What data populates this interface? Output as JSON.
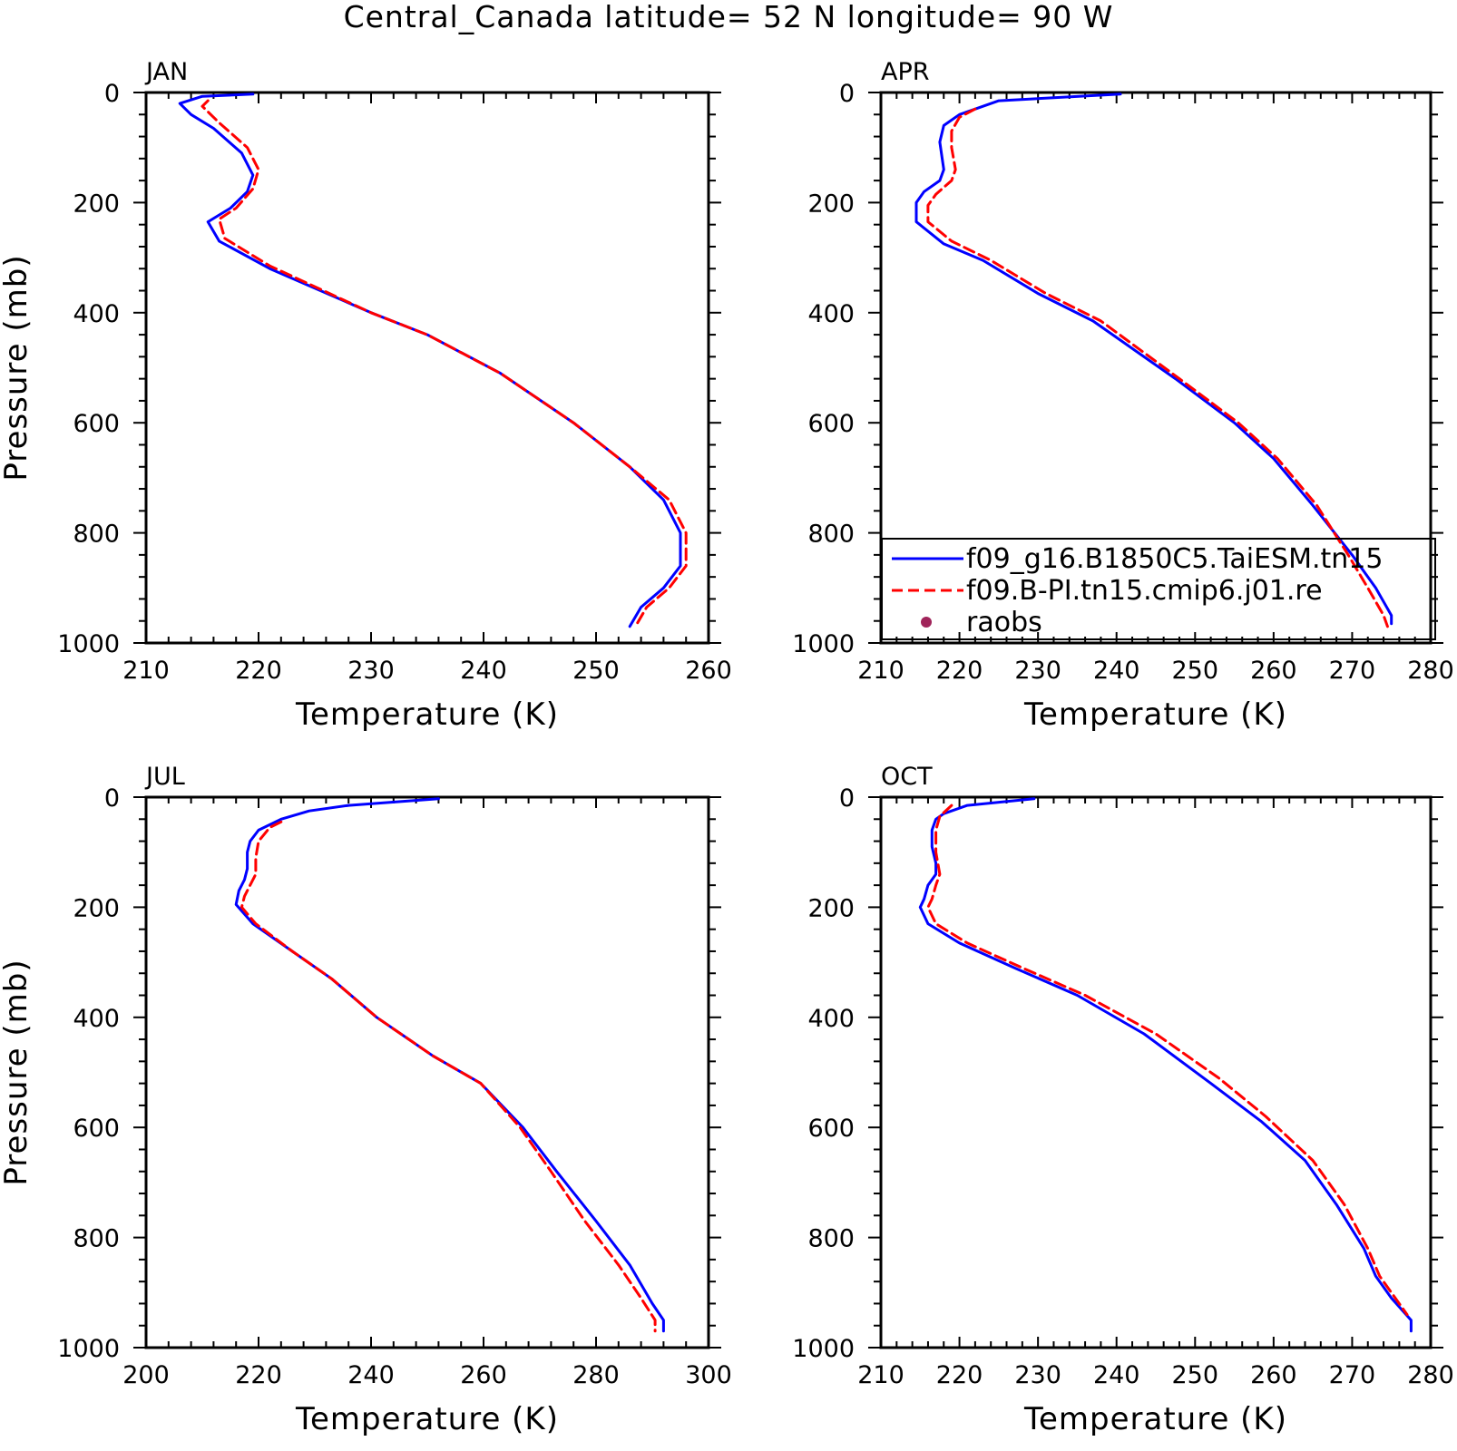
{
  "figure": {
    "title": "Central_Canada  latitude= 52 N longitude= 90 W"
  },
  "chart_data": [
    {
      "type": "line",
      "panel": "JAN",
      "xlabel": "Temperature (K)",
      "ylabel": "Pressure (mb)",
      "xlim": [
        210,
        260
      ],
      "ylim": [
        1000,
        0
      ],
      "y_inverted": true,
      "xticks": [
        210,
        220,
        230,
        240,
        250,
        260
      ],
      "yticks": [
        0,
        200,
        400,
        600,
        800,
        1000
      ],
      "series": [
        {
          "name": "f09_g16.B1850C5.TaiESM.tn15",
          "color": "#0000ff",
          "style": "solid",
          "points": [
            [
              219.5,
              3
            ],
            [
              215,
              7
            ],
            [
              213,
              20
            ],
            [
              214,
              40
            ],
            [
              216,
              65
            ],
            [
              218.5,
              110
            ],
            [
              219.5,
              150
            ],
            [
              219,
              180
            ],
            [
              217.5,
              210
            ],
            [
              215.5,
              235
            ],
            [
              216.5,
              270
            ],
            [
              221,
              320
            ],
            [
              230,
              400
            ],
            [
              235,
              440
            ],
            [
              241.5,
              510
            ],
            [
              248,
              600
            ],
            [
              253,
              680
            ],
            [
              256,
              740
            ],
            [
              257.5,
              800
            ],
            [
              257.5,
              860
            ],
            [
              256,
              900
            ],
            [
              254,
              935
            ],
            [
              253,
              970
            ]
          ]
        },
        {
          "name": "f09.B-PI.tn15.cmip6.j01.re",
          "color": "#ff0000",
          "style": "dashed",
          "points": [
            [
              215.5,
              15
            ],
            [
              215,
              25
            ],
            [
              216.5,
              55
            ],
            [
              219,
              100
            ],
            [
              220,
              140
            ],
            [
              219.5,
              175
            ],
            [
              218,
              210
            ],
            [
              216.5,
              230
            ],
            [
              217,
              265
            ],
            [
              221,
              315
            ],
            [
              230,
              400
            ],
            [
              235,
              440
            ],
            [
              241.5,
              510
            ],
            [
              248,
              600
            ],
            [
              253,
              680
            ],
            [
              256.5,
              740
            ],
            [
              258,
              800
            ],
            [
              258,
              860
            ],
            [
              256.5,
              900
            ],
            [
              254.5,
              935
            ],
            [
              253.5,
              970
            ]
          ]
        }
      ]
    },
    {
      "type": "line",
      "panel": "APR",
      "xlabel": "Temperature (K)",
      "ylabel": "",
      "xlim": [
        210,
        280
      ],
      "ylim": [
        1000,
        0
      ],
      "y_inverted": true,
      "xticks": [
        210,
        220,
        230,
        240,
        250,
        260,
        270,
        280
      ],
      "yticks": [
        0,
        200,
        400,
        600,
        800,
        1000
      ],
      "series": [
        {
          "name": "f09_g16.B1850C5.TaiESM.tn15",
          "color": "#0000ff",
          "style": "solid",
          "points": [
            [
              240.5,
              3
            ],
            [
              225,
              15
            ],
            [
              220,
              40
            ],
            [
              218,
              60
            ],
            [
              217.5,
              90
            ],
            [
              218,
              140
            ],
            [
              217.5,
              160
            ],
            [
              215.5,
              180
            ],
            [
              214.5,
              200
            ],
            [
              214.5,
              235
            ],
            [
              218,
              275
            ],
            [
              223,
              305
            ],
            [
              230,
              365
            ],
            [
              237,
              415
            ],
            [
              247.5,
              520
            ],
            [
              255,
              600
            ],
            [
              260,
              665
            ],
            [
              265,
              750
            ],
            [
              270,
              840
            ],
            [
              273,
              900
            ],
            [
              275,
              950
            ],
            [
              275,
              965
            ]
          ]
        },
        {
          "name": "f09.B-PI.tn15.cmip6.j01.re",
          "color": "#ff0000",
          "style": "dashed",
          "points": [
            [
              222,
              30
            ],
            [
              220,
              45
            ],
            [
              219,
              70
            ],
            [
              219,
              100
            ],
            [
              219.5,
              140
            ],
            [
              219,
              160
            ],
            [
              217,
              185
            ],
            [
              216,
              205
            ],
            [
              216,
              235
            ],
            [
              219,
              270
            ],
            [
              224,
              305
            ],
            [
              231,
              365
            ],
            [
              238,
              415
            ],
            [
              248,
              520
            ],
            [
              255.5,
              600
            ],
            [
              260.5,
              665
            ],
            [
              265.5,
              750
            ],
            [
              269.5,
              840
            ],
            [
              272,
              900
            ],
            [
              274,
              950
            ],
            [
              274.5,
              970
            ]
          ]
        }
      ],
      "legend": {
        "placement": "bottom-right",
        "entries": [
          {
            "label": "f09_g16.B1850C5.TaiESM.tn15",
            "marker": "line",
            "color": "#0000ff"
          },
          {
            "label": "f09.B-PI.tn15.cmip6.j01.re",
            "marker": "dashed",
            "color": "#ff0000"
          },
          {
            "label": "raobs",
            "marker": "dot",
            "color": "#a0245a"
          }
        ]
      }
    },
    {
      "type": "line",
      "panel": "JUL",
      "xlabel": "Temperature (K)",
      "ylabel": "Pressure (mb)",
      "xlim": [
        200,
        300
      ],
      "ylim": [
        1000,
        0
      ],
      "y_inverted": true,
      "xticks": [
        200,
        220,
        240,
        260,
        280,
        300
      ],
      "yticks": [
        0,
        200,
        400,
        600,
        800,
        1000
      ],
      "series": [
        {
          "name": "f09_g16.B1850C5.TaiESM.tn15",
          "color": "#0000ff",
          "style": "solid",
          "points": [
            [
              252,
              3
            ],
            [
              236,
              15
            ],
            [
              229,
              25
            ],
            [
              224,
              40
            ],
            [
              220,
              60
            ],
            [
              218.5,
              80
            ],
            [
              218,
              100
            ],
            [
              218,
              130
            ],
            [
              217.5,
              150
            ],
            [
              216.5,
              170
            ],
            [
              216,
              195
            ],
            [
              219,
              230
            ],
            [
              226,
              280
            ],
            [
              233,
              330
            ],
            [
              241,
              400
            ],
            [
              251,
              470
            ],
            [
              259.5,
              520
            ],
            [
              267,
              600
            ],
            [
              273,
              680
            ],
            [
              280,
              770
            ],
            [
              286,
              850
            ],
            [
              290,
              920
            ],
            [
              292,
              950
            ],
            [
              292,
              970
            ]
          ]
        },
        {
          "name": "f09.B-PI.tn15.cmip6.j01.re",
          "color": "#ff0000",
          "style": "dashed",
          "points": [
            [
              224,
              45
            ],
            [
              222,
              55
            ],
            [
              220,
              80
            ],
            [
              219.5,
              110
            ],
            [
              219.5,
              140
            ],
            [
              218.5,
              160
            ],
            [
              217.5,
              180
            ],
            [
              217,
              200
            ],
            [
              219.5,
              230
            ],
            [
              226,
              280
            ],
            [
              233,
              330
            ],
            [
              241,
              400
            ],
            [
              251,
              470
            ],
            [
              259.5,
              520
            ],
            [
              266.5,
              600
            ],
            [
              272,
              680
            ],
            [
              278,
              770
            ],
            [
              284,
              850
            ],
            [
              288,
              910
            ],
            [
              290.5,
              950
            ],
            [
              290.5,
              970
            ]
          ]
        }
      ]
    },
    {
      "type": "line",
      "panel": "OCT",
      "xlabel": "Temperature (K)",
      "ylabel": "",
      "xlim": [
        210,
        280
      ],
      "ylim": [
        1000,
        0
      ],
      "y_inverted": true,
      "xticks": [
        210,
        220,
        230,
        240,
        250,
        260,
        270,
        280
      ],
      "yticks": [
        0,
        200,
        400,
        600,
        800,
        1000
      ],
      "series": [
        {
          "name": "f09_g16.B1850C5.TaiESM.tn15",
          "color": "#0000ff",
          "style": "solid",
          "points": [
            [
              229.5,
              3
            ],
            [
              221,
              15
            ],
            [
              218,
              30
            ],
            [
              217,
              40
            ],
            [
              216.5,
              60
            ],
            [
              216.5,
              90
            ],
            [
              217,
              120
            ],
            [
              217,
              140
            ],
            [
              216,
              160
            ],
            [
              215.5,
              185
            ],
            [
              215,
              200
            ],
            [
              216,
              230
            ],
            [
              220,
              265
            ],
            [
              227,
              310
            ],
            [
              235,
              360
            ],
            [
              243.5,
              430
            ],
            [
              252,
              520
            ],
            [
              258.5,
              590
            ],
            [
              264,
              660
            ],
            [
              268,
              740
            ],
            [
              271.5,
              820
            ],
            [
              273,
              870
            ],
            [
              275,
              910
            ],
            [
              277.5,
              950
            ],
            [
              277.5,
              970
            ]
          ]
        },
        {
          "name": "f09.B-PI.tn15.cmip6.j01.re",
          "color": "#ff0000",
          "style": "dashed",
          "points": [
            [
              219,
              15
            ],
            [
              217.5,
              35
            ],
            [
              217,
              60
            ],
            [
              217,
              100
            ],
            [
              217.5,
              140
            ],
            [
              217,
              160
            ],
            [
              216.5,
              185
            ],
            [
              216,
              200
            ],
            [
              217,
              230
            ],
            [
              221,
              265
            ],
            [
              228,
              310
            ],
            [
              236,
              360
            ],
            [
              245,
              430
            ],
            [
              253,
              510
            ],
            [
              259,
              580
            ],
            [
              265,
              660
            ],
            [
              269,
              740
            ],
            [
              272,
              820
            ],
            [
              273.5,
              870
            ],
            [
              275.5,
              910
            ],
            [
              277,
              940
            ]
          ]
        }
      ]
    }
  ]
}
